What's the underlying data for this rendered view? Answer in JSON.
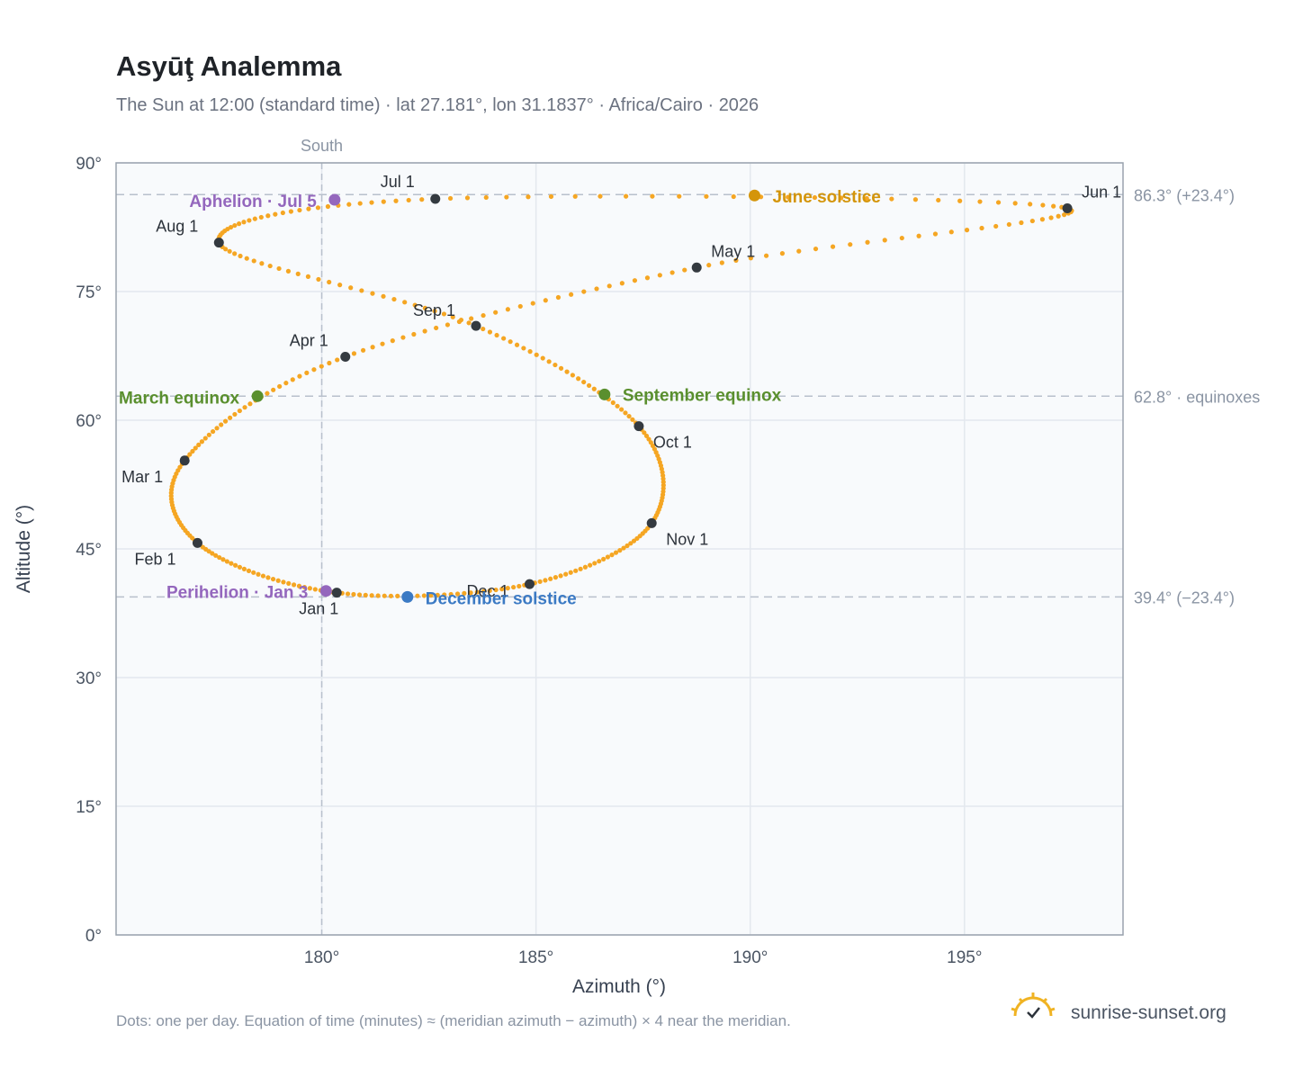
{
  "title": "Asyūţ Analemma",
  "subtitle": "The Sun at 12:00 (standard time) · lat 27.181°, lon 31.1837° · Africa/Cairo · 2026",
  "footnote": "Dots: one per day. Equation of time (minutes) ≈ (meridian azimuth − azimuth) × 4 near the meridian.",
  "brand": {
    "text": "sunrise-sunset.org",
    "icon": "sunrise-logo-icon",
    "color": "#f0b323"
  },
  "colors": {
    "dots": "#f5a623",
    "month_marker": "#343a40",
    "solstice_june": "#d4950a",
    "solstice_december": "#3b7ac4",
    "equinox": "#5a8f2e",
    "apsis": "#9467bd",
    "reference_line": "#b8c0cc",
    "grid": "#e3e8ee",
    "plot_background": "#f8fafc"
  },
  "chart_data": {
    "type": "scatter",
    "xlabel": "Azimuth (°)",
    "ylabel": "Altitude (°)",
    "xlim": [
      175.2,
      198.7
    ],
    "ylim": [
      0,
      90
    ],
    "xticks": [
      180,
      185,
      190,
      195
    ],
    "xtick_labels": [
      "180°",
      "185°",
      "190°",
      "195°"
    ],
    "yticks": [
      0,
      15,
      30,
      45,
      60,
      75,
      90
    ],
    "ytick_labels": [
      "0°",
      "15°",
      "30°",
      "45°",
      "60°",
      "75°",
      "90°"
    ],
    "grid": true,
    "meridian": {
      "azimuth": 180,
      "label": "South"
    },
    "reference_lines": [
      {
        "altitude": 86.3,
        "label": "86.3° (+23.4°)"
      },
      {
        "altitude": 62.8,
        "label": "62.8° · equinoxes"
      },
      {
        "altitude": 39.4,
        "label": "39.4° (−23.4°)"
      }
    ],
    "month_points": [
      {
        "label": "Jan 1",
        "azimuth": 180.35,
        "altitude": 39.9
      },
      {
        "label": "Feb 1",
        "azimuth": 177.1,
        "altitude": 45.7
      },
      {
        "label": "Mar 1",
        "azimuth": 176.8,
        "altitude": 55.3
      },
      {
        "label": "Apr 1",
        "azimuth": 180.55,
        "altitude": 67.4
      },
      {
        "label": "May 1",
        "azimuth": 188.75,
        "altitude": 77.8
      },
      {
        "label": "Jun 1",
        "azimuth": 197.4,
        "altitude": 84.7
      },
      {
        "label": "Jul 1",
        "azimuth": 182.65,
        "altitude": 85.8
      },
      {
        "label": "Aug 1",
        "azimuth": 177.6,
        "altitude": 80.7
      },
      {
        "label": "Sep 1",
        "azimuth": 183.6,
        "altitude": 71.0
      },
      {
        "label": "Oct 1",
        "azimuth": 187.4,
        "altitude": 59.3
      },
      {
        "label": "Nov 1",
        "azimuth": 187.7,
        "altitude": 48.0
      },
      {
        "label": "Dec 1",
        "azimuth": 184.85,
        "altitude": 40.9
      }
    ],
    "events": [
      {
        "label": "June solstice",
        "azimuth": 190.1,
        "altitude": 86.2,
        "color": "#d4950a"
      },
      {
        "label": "December solstice",
        "azimuth": 182.0,
        "altitude": 39.4,
        "color": "#3b7ac4"
      },
      {
        "label": "March equinox",
        "azimuth": 178.5,
        "altitude": 62.8,
        "color": "#5a8f2e"
      },
      {
        "label": "September equinox",
        "azimuth": 186.6,
        "altitude": 63.0,
        "color": "#5a8f2e"
      },
      {
        "label": "Aphelion · Jul 5",
        "azimuth": 180.3,
        "altitude": 85.7,
        "color": "#9467bd"
      },
      {
        "label": "Perihelion · Jan 3",
        "azimuth": 180.1,
        "altitude": 40.1,
        "color": "#9467bd"
      }
    ]
  }
}
